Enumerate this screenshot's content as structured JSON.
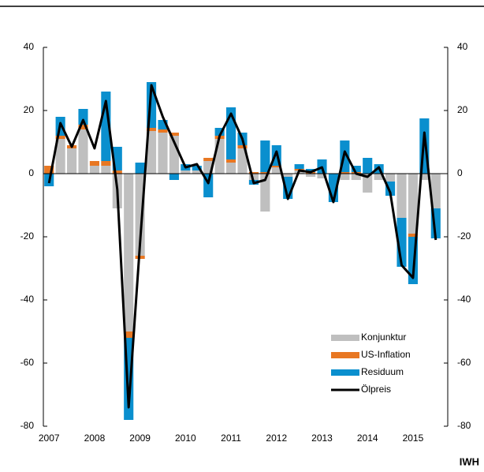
{
  "chart_data": {
    "type": "bar",
    "categories": [
      "2007",
      null,
      null,
      null,
      "2008",
      null,
      null,
      null,
      "2009",
      null,
      null,
      null,
      "2010",
      null,
      null,
      null,
      "2011",
      null,
      null,
      null,
      "2012",
      null,
      null,
      null,
      "2013",
      null,
      null,
      null,
      "2014",
      null,
      null,
      null,
      "2015",
      null,
      null
    ],
    "series": [
      {
        "name": "Konjunktur",
        "type": "bar",
        "color": "#bfbfbf",
        "values": [
          0,
          11,
          8,
          14,
          2.5,
          2.5,
          -11,
          -50,
          -26,
          13.5,
          13,
          12,
          1,
          1,
          4,
          11,
          3.5,
          8,
          -2,
          -12,
          2,
          -1,
          1,
          -1,
          -1.5,
          0,
          -2,
          -2,
          -6,
          -2,
          -2.5,
          -14,
          -19,
          -2,
          -11
        ]
      },
      {
        "name": "US-Inflation",
        "type": "bar",
        "color": "#e87722",
        "values": [
          2.5,
          1,
          1,
          1.5,
          1.5,
          1.5,
          1,
          -2,
          -1,
          1,
          1,
          1,
          0,
          0,
          1,
          1,
          1,
          1,
          0.5,
          0.5,
          0.5,
          0,
          0.5,
          0.5,
          0,
          0,
          0.5,
          0.5,
          0,
          0,
          0,
          0,
          -1,
          0,
          0
        ]
      },
      {
        "name": "Residuum",
        "type": "bar",
        "color": "#0a8fce",
        "values": [
          -4,
          6,
          0,
          5,
          0,
          22,
          7.5,
          -26,
          3.5,
          14.5,
          3,
          -2,
          2,
          1.5,
          -7.5,
          2.5,
          16.5,
          4,
          -1.5,
          10,
          6.5,
          -7,
          1.5,
          1,
          4.5,
          -9,
          10,
          2,
          5,
          3,
          -4.5,
          -15.5,
          -15,
          17.5,
          -9.5
        ]
      },
      {
        "name": "Ölpreis",
        "type": "line",
        "color": "#000000",
        "values": [
          -3,
          16,
          8.5,
          17,
          8,
          23,
          -5,
          -74,
          -22,
          28,
          18,
          10,
          2,
          3,
          -3,
          12,
          19,
          11,
          -3,
          -2,
          7,
          -8,
          1,
          0.5,
          2,
          -9,
          7,
          0,
          -1,
          2,
          -6,
          -29,
          -33,
          13,
          -21
        ]
      }
    ],
    "ylim": [
      -80,
      40
    ],
    "yticks": [
      40,
      20,
      0,
      -20,
      -40,
      -60,
      -80
    ],
    "y2lim": [
      -80,
      40
    ],
    "y2ticks": [
      40,
      20,
      0,
      -20,
      -40,
      -60,
      -80
    ],
    "source": "IWH"
  }
}
